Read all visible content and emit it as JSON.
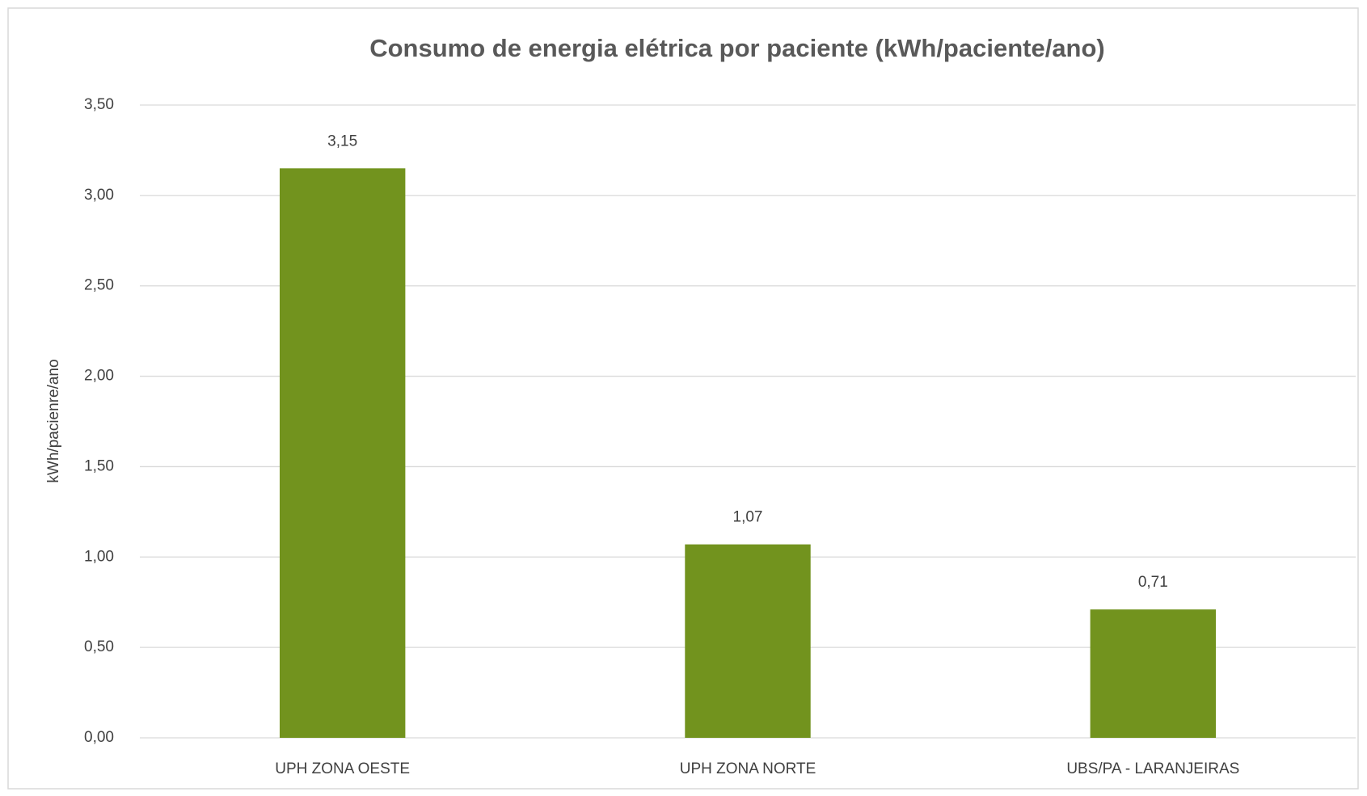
{
  "chart_data": {
    "type": "bar",
    "title": "Consumo de energia elétrica por paciente (kWh/paciente/ano)",
    "y_label": "kWh/pacienre/ano",
    "categories": [
      "UPH ZONA OESTE",
      "UPH ZONA NORTE",
      "UBS/PA - LARANJEIRAS"
    ],
    "values": [
      3.15,
      1.07,
      0.71
    ],
    "value_labels": [
      "3,15",
      "1,07",
      "0,71"
    ],
    "color": "#72931e",
    "ylim": [
      0,
      3.5
    ],
    "yticks": [
      {
        "value": 0,
        "label": "0,00"
      },
      {
        "value": 0.5,
        "label": "0,50"
      },
      {
        "value": 1,
        "label": "1,00"
      },
      {
        "value": 1.5,
        "label": "1,50"
      },
      {
        "value": 2,
        "label": "2,00"
      },
      {
        "value": 2.5,
        "label": "2,50"
      },
      {
        "value": 3,
        "label": "3,00"
      },
      {
        "value": 3.5,
        "label": "3,50"
      }
    ],
    "grid": true
  }
}
